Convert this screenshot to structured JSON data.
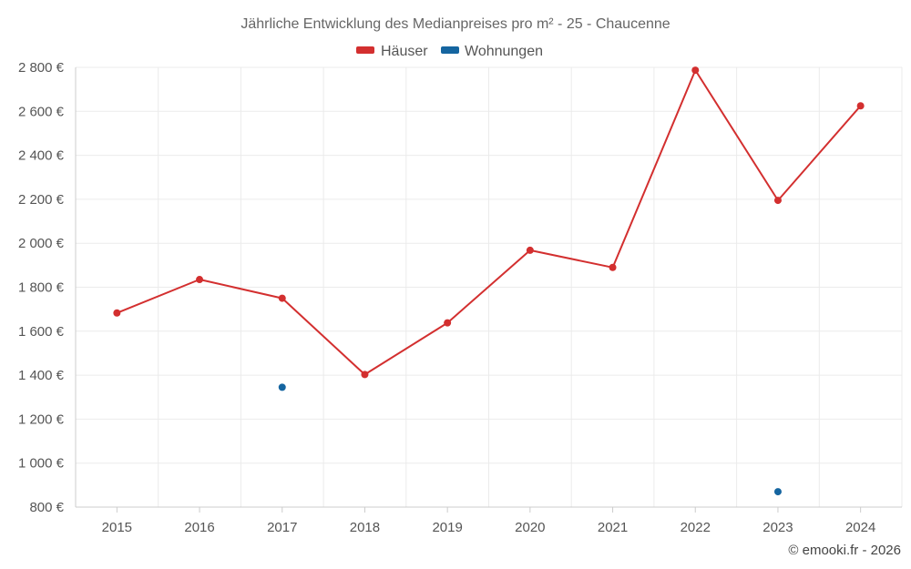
{
  "chart_data": {
    "type": "line",
    "title": "Jährliche Entwicklung des Medianpreises pro m² - 25 - Chaucenne",
    "categories": [
      "2015",
      "2016",
      "2017",
      "2018",
      "2019",
      "2020",
      "2021",
      "2022",
      "2023",
      "2024"
    ],
    "series": [
      {
        "name": "Häuser",
        "color": "#d32f2f",
        "style": "line-with-markers",
        "values": [
          1683,
          1835,
          1750,
          1403,
          1638,
          1968,
          1890,
          2787,
          2195,
          2625
        ]
      },
      {
        "name": "Wohnungen",
        "color": "#1565a0",
        "style": "markers-only",
        "values": [
          null,
          null,
          1345,
          null,
          null,
          null,
          null,
          null,
          870,
          null
        ]
      }
    ],
    "y_ticks": [
      "800 €",
      "1 000 €",
      "1 200 €",
      "1 400 €",
      "1 600 €",
      "1 800 €",
      "2 000 €",
      "2 200 €",
      "2 400 €",
      "2 600 €",
      "2 800 €"
    ],
    "ylim": [
      800,
      2800
    ],
    "grid": true,
    "legend_placement": "top-center",
    "xlabel": "",
    "ylabel": ""
  },
  "credit": "© emooki.fr - 2026"
}
